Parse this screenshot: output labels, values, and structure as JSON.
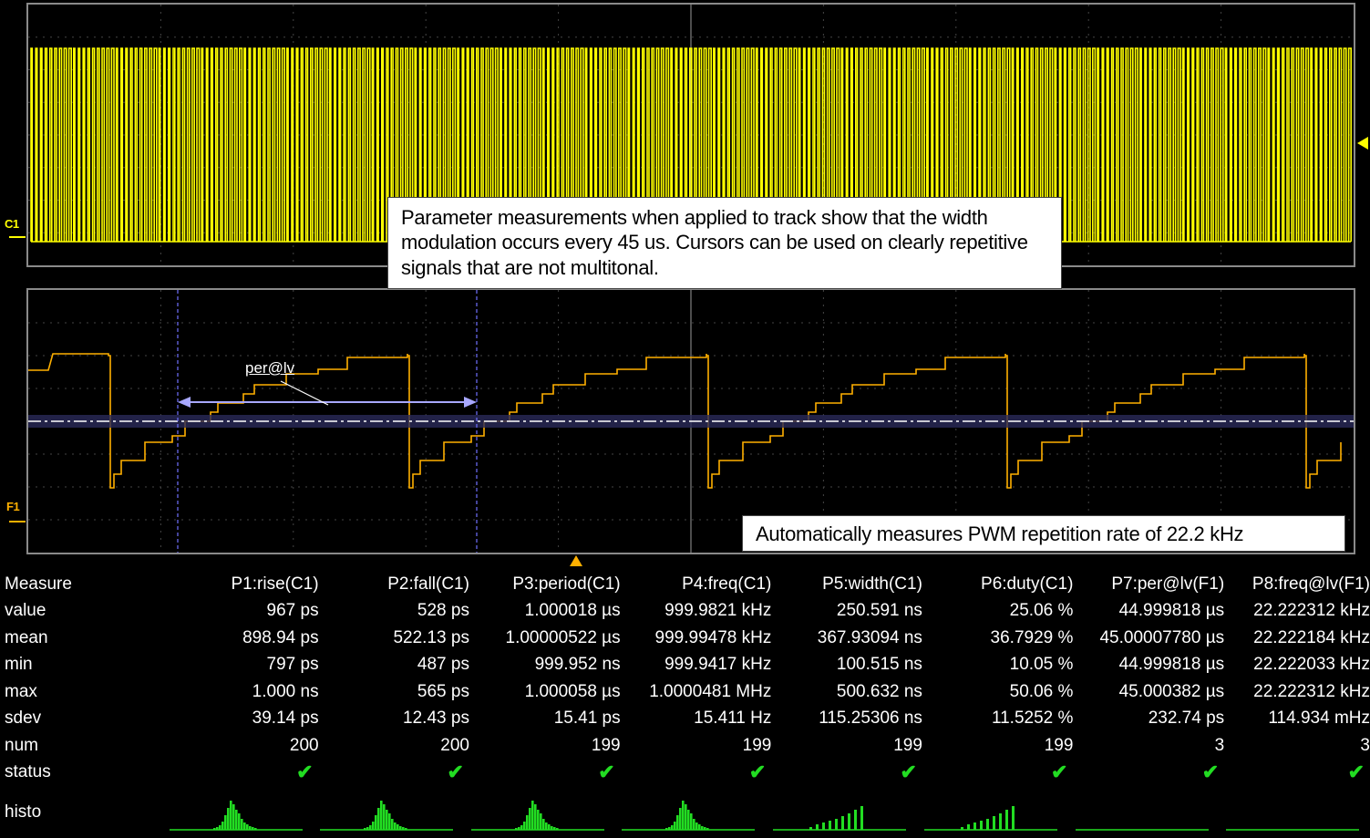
{
  "channels": {
    "c1": "C1",
    "f1": "F1"
  },
  "callouts": {
    "top": "Parameter measurements when applied to track show that the width modulation occurs every  45 us.  Cursors can be used on clearly repetitive signals that are not multitonal.",
    "bottom": "Automatically measures PWM repetition rate of 22.2 kHz"
  },
  "cursor_label": "per@lv",
  "colors": {
    "c1_trace": "#ffff00",
    "f1_trace": "#ffb000",
    "grid": "#8a8a8a",
    "check": "#22dd22",
    "histo": "#22dd22",
    "cursor": "#7070ff"
  },
  "measure": {
    "title": "Measure",
    "columns": [
      "P1:rise(C1)",
      "P2:fall(C1)",
      "P3:period(C1)",
      "P4:freq(C1)",
      "P5:width(C1)",
      "P6:duty(C1)",
      "P7:per@lv(F1)",
      "P8:freq@lv(F1)"
    ],
    "rows": [
      {
        "label": "value",
        "cells": [
          "967 ps",
          "528 ps",
          "1.000018 µs",
          "999.9821 kHz",
          "250.591 ns",
          "25.06 %",
          "44.999818 µs",
          "22.222312 kHz"
        ]
      },
      {
        "label": "mean",
        "cells": [
          "898.94 ps",
          "522.13 ps",
          "1.00000522 µs",
          "999.99478 kHz",
          "367.93094 ns",
          "36.7929 %",
          "45.00007780 µs",
          "22.222184 kHz"
        ]
      },
      {
        "label": "min",
        "cells": [
          "797 ps",
          "487 ps",
          "999.952 ns",
          "999.9417 kHz",
          "100.515 ns",
          "10.05 %",
          "44.999818 µs",
          "22.222033 kHz"
        ]
      },
      {
        "label": "max",
        "cells": [
          "1.000 ns",
          "565 ps",
          "1.000058 µs",
          "1.0000481 MHz",
          "500.632 ns",
          "50.06 %",
          "45.000382 µs",
          "22.222312 kHz"
        ]
      },
      {
        "label": "sdev",
        "cells": [
          "39.14 ps",
          "12.43 ps",
          "15.41 ps",
          "15.411 Hz",
          "115.25306 ns",
          "11.5252 %",
          "232.74 ps",
          "114.934 mHz"
        ]
      },
      {
        "label": "num",
        "cells": [
          "200",
          "200",
          "199",
          "199",
          "199",
          "199",
          "3",
          "3"
        ]
      }
    ],
    "status_label": "status",
    "status_icon": "check-icon",
    "status_glyph": "✔",
    "histo_label": "histo"
  }
}
